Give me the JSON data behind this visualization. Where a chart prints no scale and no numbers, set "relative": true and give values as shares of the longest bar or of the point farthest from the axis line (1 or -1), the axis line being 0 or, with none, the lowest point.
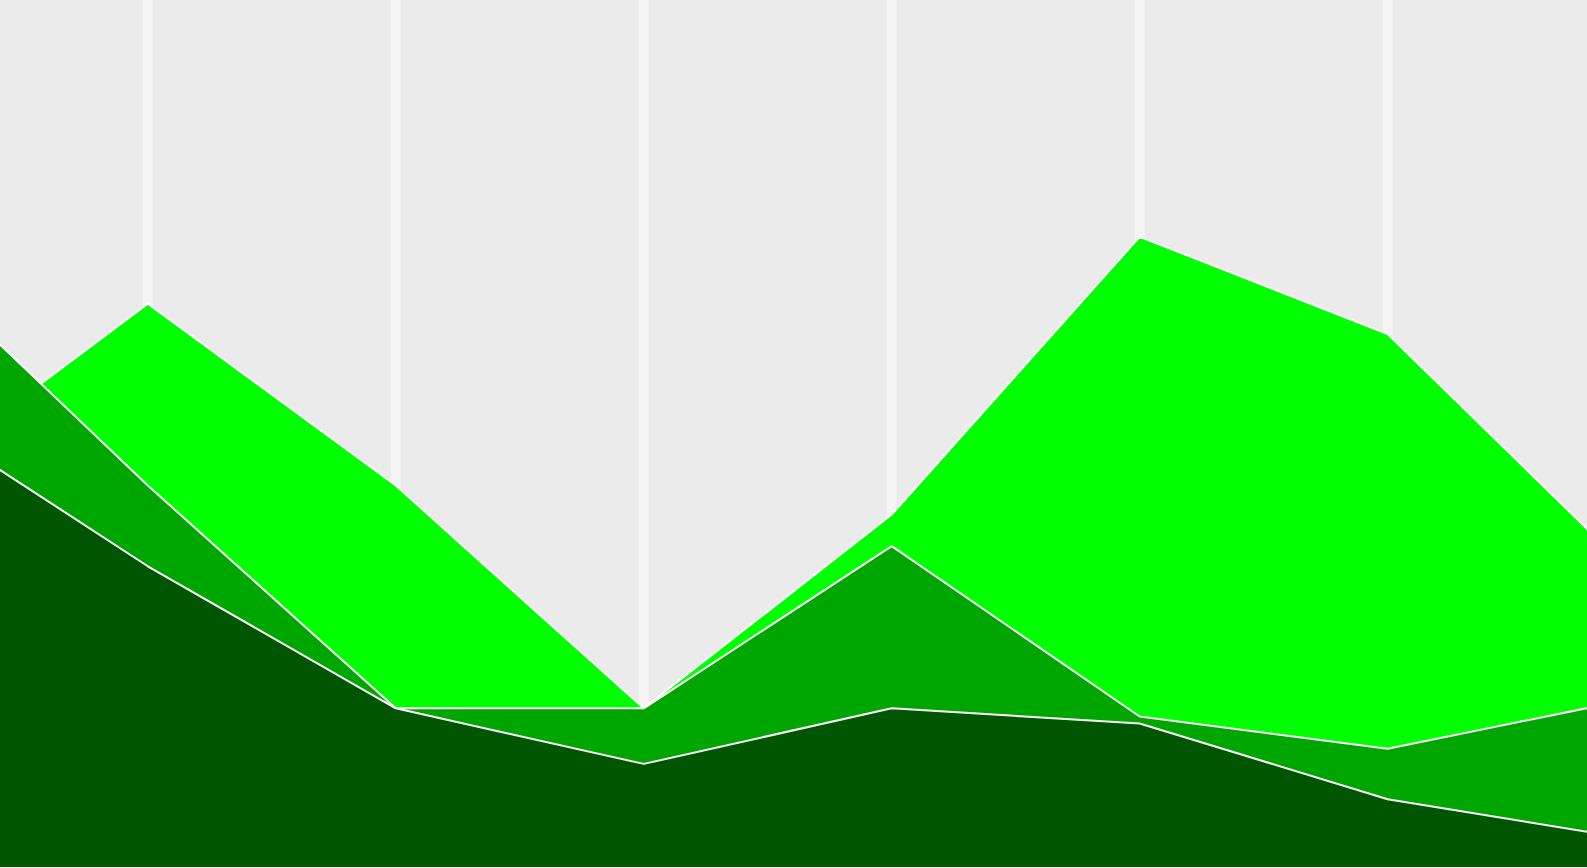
{
  "chart_data": {
    "type": "area",
    "relative": true,
    "grid": "x",
    "categories": [
      null,
      null,
      null,
      null,
      null,
      null,
      null,
      null
    ],
    "series": [
      {
        "color": "#00ff00",
        "values": [
          0.6,
          0.894,
          0.606,
          0.253,
          0.56,
          1.0,
          0.846,
          0.462
        ]
      },
      {
        "color": "#00a600",
        "values": [
          0.98,
          0.606,
          0.253,
          0.253,
          0.51,
          0.24,
          0.189,
          0.269
        ]
      },
      {
        "color": "#005500",
        "values": [
          0.734,
          0.478,
          0.253,
          0.165,
          0.253,
          0.229,
          0.109,
          0.045
        ]
      }
    ]
  }
}
